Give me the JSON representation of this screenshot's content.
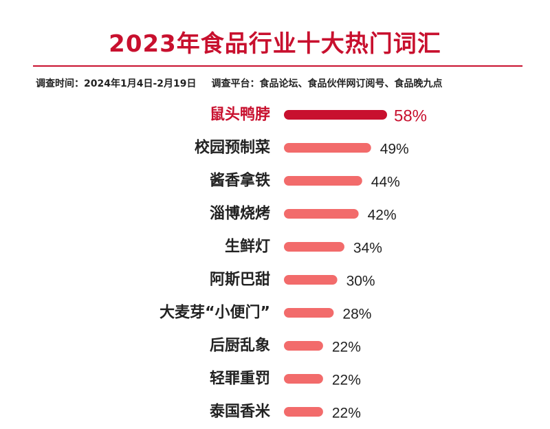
{
  "title": "2023年食品行业十大热门词汇",
  "survey": {
    "time": "调查时间：2024年1月4日-2月19日",
    "platform": "调查平台：食品论坛、食品伙伴网订阅号、食品晚九点"
  },
  "colors": {
    "accent": "#c8102e",
    "bar": "#f26b6b",
    "text": "#222222"
  },
  "chart_data": {
    "type": "bar",
    "orientation": "horizontal",
    "categories": [
      "鼠头鸭脖",
      "校园预制菜",
      "酱香拿铁",
      "淄博烧烤",
      "生鲜灯",
      "阿斯巴甜",
      "大麦芽“小便门”",
      "后厨乱象",
      "轻罪重罚",
      "泰国香米"
    ],
    "values": [
      58,
      49,
      44,
      42,
      34,
      30,
      28,
      22,
      22,
      22
    ],
    "value_labels": [
      "58%",
      "49%",
      "44%",
      "42%",
      "34%",
      "30%",
      "28%",
      "22%",
      "22%",
      "22%"
    ],
    "highlight_index": 0,
    "grid": false,
    "legend": false
  }
}
